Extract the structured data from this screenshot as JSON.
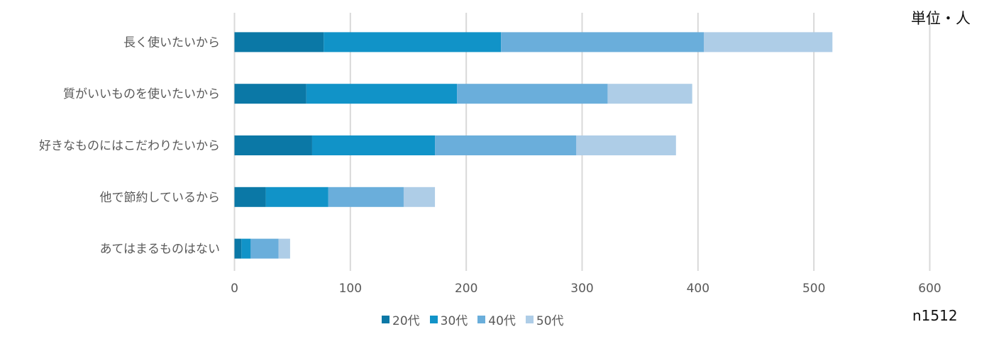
{
  "unit_label": "単位・人",
  "sample_label": "n1512",
  "chart_data": {
    "type": "bar",
    "orientation": "horizontal",
    "stacked": true,
    "categories": [
      "長く使いたいから",
      "質がいいものを使いたいから",
      "好きなものにはこだわりたいから",
      "他で節約しているから",
      "あてはまるものはない"
    ],
    "series": [
      {
        "name": "20代",
        "color": "#0b78a6",
        "values": [
          77,
          62,
          67,
          27,
          6
        ]
      },
      {
        "name": "30代",
        "color": "#1193c8",
        "values": [
          153,
          130,
          106,
          54,
          8
        ]
      },
      {
        "name": "40代",
        "color": "#6aaedb",
        "values": [
          175,
          130,
          122,
          65,
          24
        ]
      },
      {
        "name": "50代",
        "color": "#aecde7",
        "values": [
          111,
          73,
          86,
          27,
          10
        ]
      }
    ],
    "xlim": [
      0,
      600
    ],
    "xticks": [
      "0",
      "100",
      "200",
      "300",
      "400",
      "500",
      "600"
    ],
    "grid": true,
    "legend_position": "bottom"
  }
}
